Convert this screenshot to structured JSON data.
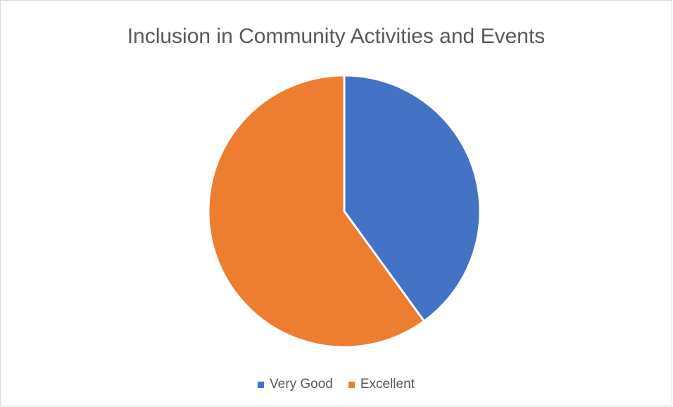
{
  "chart_data": {
    "type": "pie",
    "title": "Inclusion in Community Activities and Events",
    "categories": [
      "Very Good",
      "Excellent"
    ],
    "values": [
      40,
      60
    ],
    "colors": [
      "#4472c4",
      "#ed7d31"
    ],
    "start_angle_deg": 0,
    "direction": "clockwise",
    "legend": {
      "placement": "bottom"
    },
    "data_labels": false
  }
}
